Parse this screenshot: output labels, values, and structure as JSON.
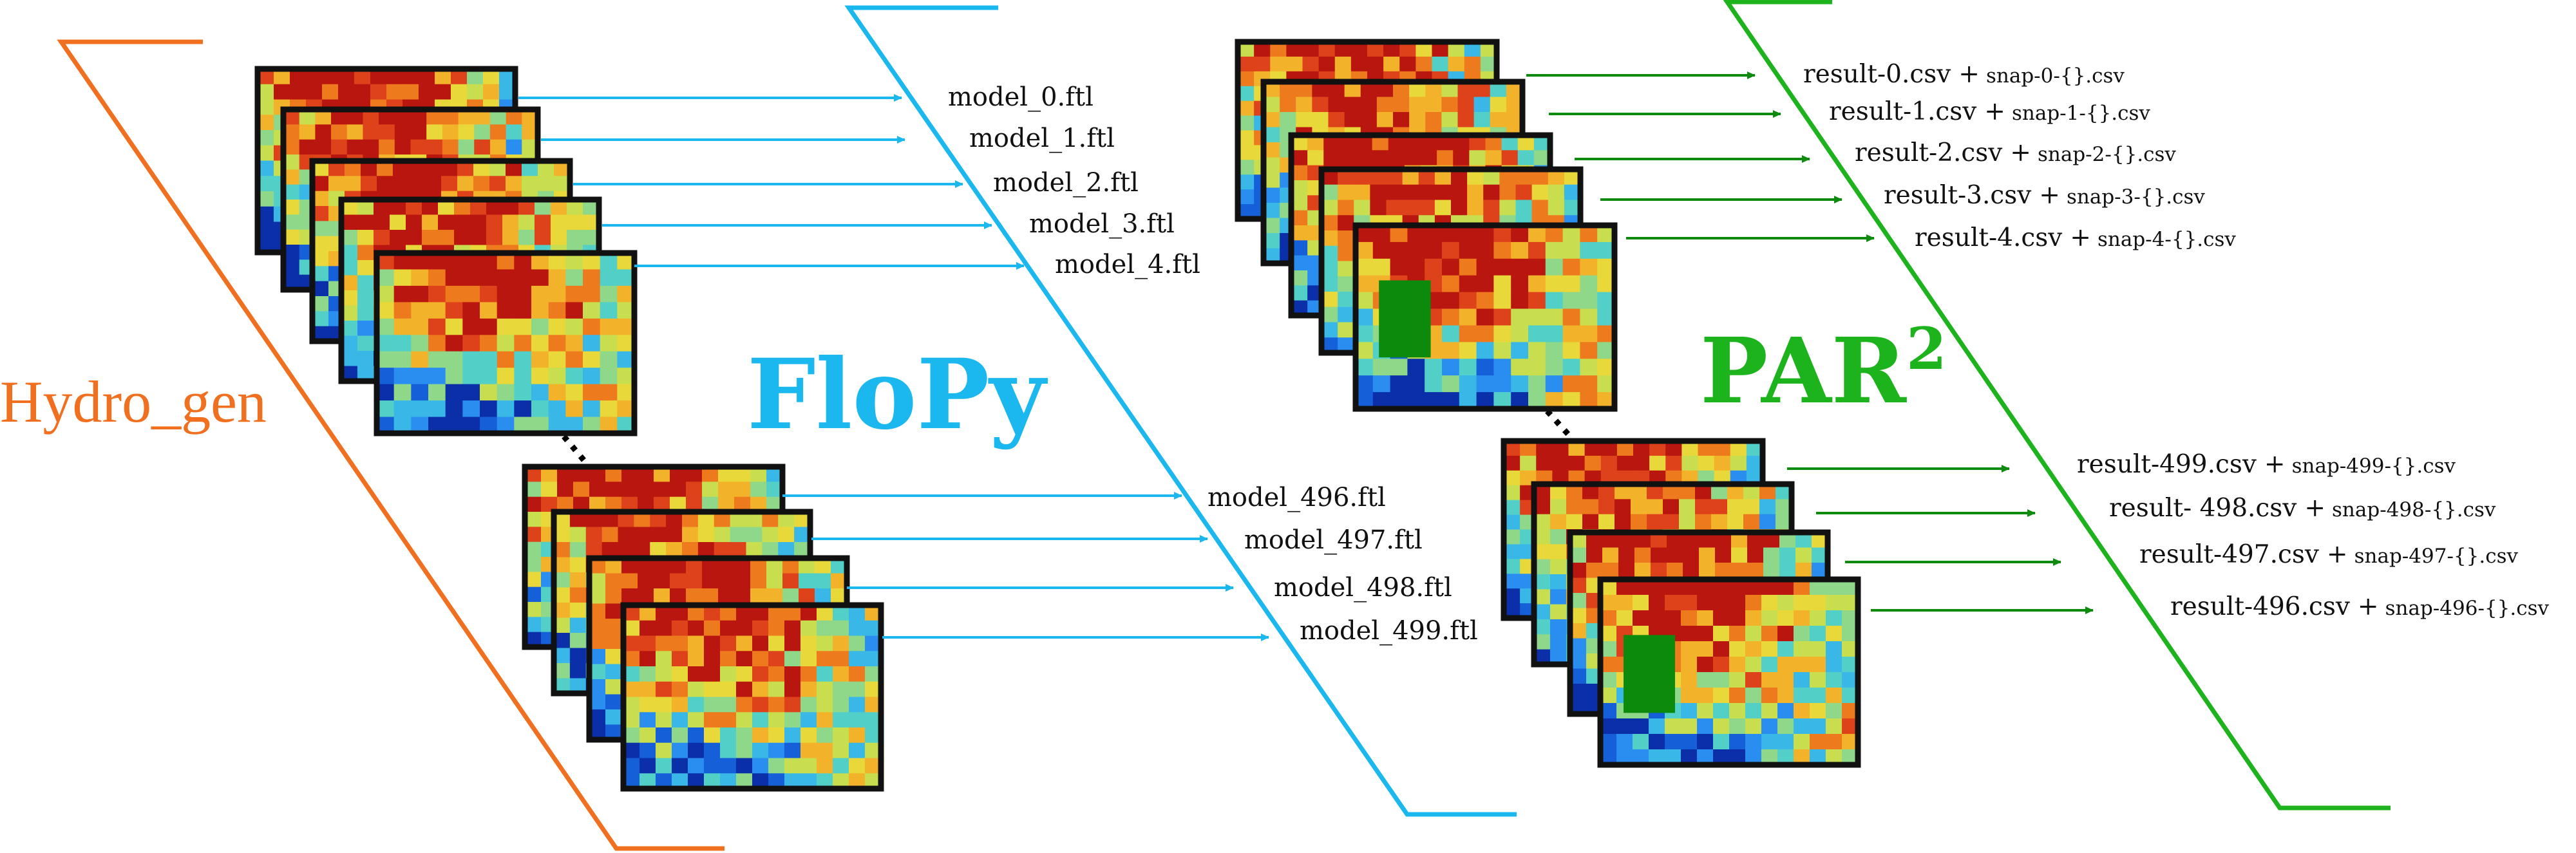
{
  "colors": {
    "hydro": "#f07020",
    "flopy": "#1ab8ee",
    "par2": "#1cb31c",
    "arrow_green": "#0e8a0e",
    "patch": "#0b8a0b",
    "frame": "#111111"
  },
  "stages": {
    "hydro": {
      "label": "Hydro_gen"
    },
    "flopy": {
      "label": "FloPy"
    },
    "par2": {
      "label": "PAR",
      "label_sup": "2"
    }
  },
  "flopy_outputs": {
    "top": [
      "model_0.ftl",
      "model_1.ftl",
      "model_2.ftl",
      "model_3.ftl",
      "model_4.ftl"
    ],
    "bottom": [
      "model_496.ftl",
      "model_497.ftl",
      "model_498.ftl",
      "model_499.ftl"
    ]
  },
  "par2_outputs": {
    "top": [
      {
        "result": "result-0.csv",
        "plus": "+",
        "snap": "snap-0-{}.csv"
      },
      {
        "result": "result-1.csv",
        "plus": "+",
        "snap": "snap-1-{}.csv"
      },
      {
        "result": "result-2.csv",
        "plus": "+",
        "snap": "snap-2-{}.csv"
      },
      {
        "result": "result-3.csv",
        "plus": "+",
        "snap": "snap-3-{}.csv"
      },
      {
        "result": "result-4.csv",
        "plus": "+",
        "snap": "snap-4-{}.csv"
      }
    ],
    "bottom": [
      {
        "result": "result-499.csv",
        "plus": "+",
        "snap": "snap-499-{}.csv"
      },
      {
        "result": "result- 498.csv",
        "plus": "+",
        "snap": "snap-498-{}.csv"
      },
      {
        "result": "result-497.csv",
        "plus": "+",
        "snap": "snap-497-{}.csv"
      },
      {
        "result": "result-496.csv",
        "plus": "+",
        "snap": "snap-496-{}.csv"
      }
    ]
  }
}
